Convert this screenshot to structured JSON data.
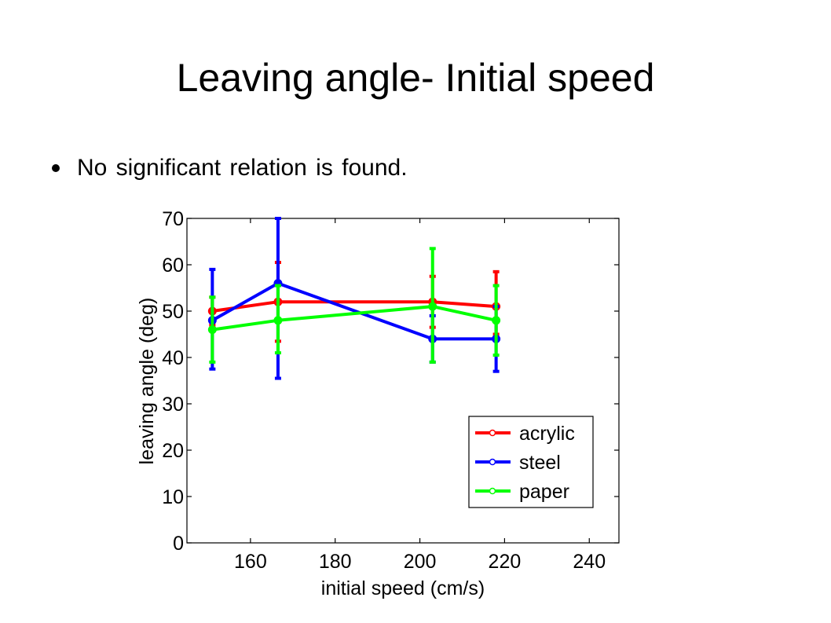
{
  "slide": {
    "title": "Leaving angle- Initial speed",
    "bullet": "No significant relation is found."
  },
  "chart_data": {
    "type": "line",
    "title": "",
    "xlabel": "initial speed (cm/s)",
    "ylabel": "leaving angle (deg)",
    "xlim": [
      145,
      247
    ],
    "ylim": [
      0,
      70
    ],
    "xticks": [
      160,
      180,
      200,
      220,
      240
    ],
    "yticks": [
      0,
      10,
      20,
      30,
      40,
      50,
      60,
      70
    ],
    "grid": false,
    "legend_position": "bottom-right",
    "series": [
      {
        "name": "acrylic",
        "color": "#ff0000",
        "x": [
          151,
          166.5,
          203,
          218
        ],
        "y": [
          50,
          52,
          52,
          51
        ],
        "err_low": [
          47,
          43.5,
          46.5,
          45
        ],
        "err_high": [
          53,
          60.5,
          57.5,
          58.5
        ]
      },
      {
        "name": "steel",
        "color": "#0000ff",
        "x": [
          151,
          166.5,
          203,
          218
        ],
        "y": [
          48,
          56,
          44,
          44
        ],
        "err_low": [
          37.5,
          35.5,
          39,
          37
        ],
        "err_high": [
          59,
          70,
          49,
          51
        ]
      },
      {
        "name": "paper",
        "color": "#00ff00",
        "x": [
          151,
          166.5,
          203,
          218
        ],
        "y": [
          46,
          48,
          51,
          48
        ],
        "err_low": [
          39,
          41,
          39,
          40.5
        ],
        "err_high": [
          53,
          55.5,
          63.5,
          55.5
        ]
      }
    ]
  }
}
